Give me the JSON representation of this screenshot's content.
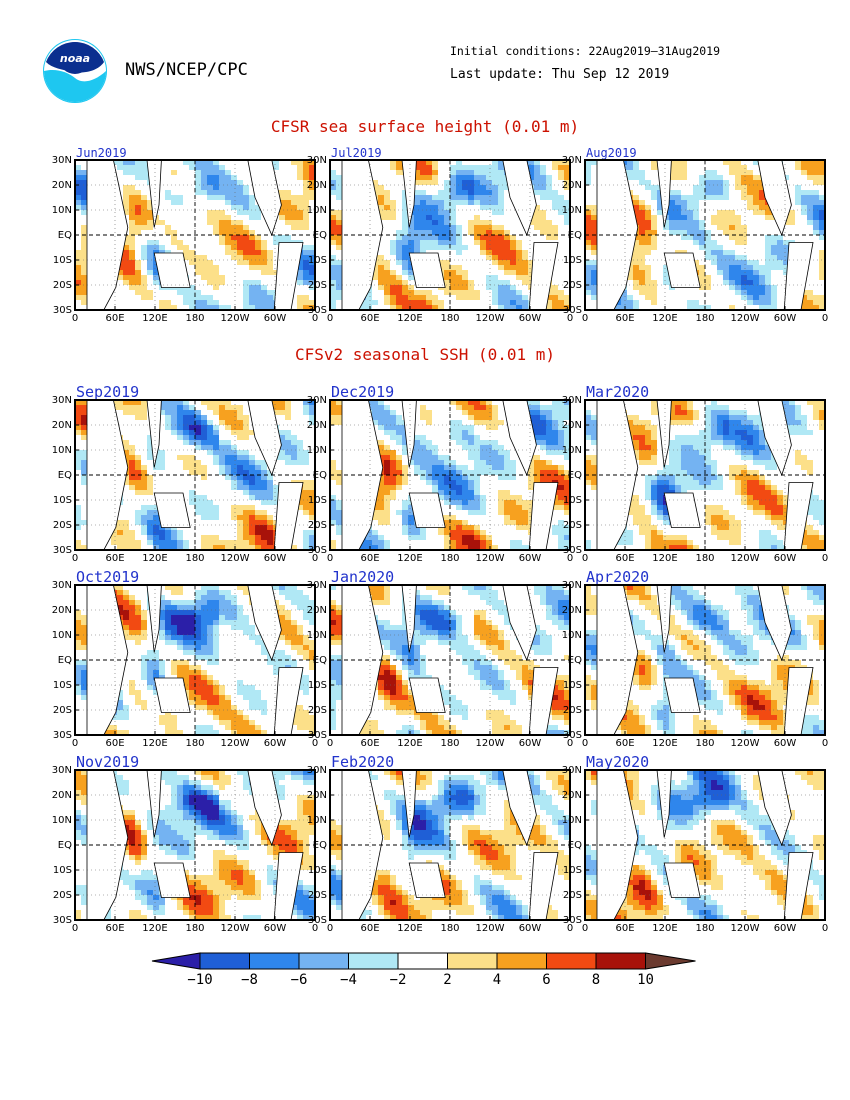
{
  "header": {
    "agency": "NWS/NCEP/CPC",
    "initial_conditions": "Initial conditions: 22Aug2019–31Aug2019",
    "last_update": "Last update: Thu Sep 12 2019",
    "logo_text": "noaa"
  },
  "sections": {
    "observed_title": "CFSR sea surface height (0.01 m)",
    "forecast_title": "CFSv2 seasonal SSH (0.01 m)"
  },
  "colors": {
    "title_red": "#cc1100",
    "panel_title_blue": "#2233cc"
  },
  "chart_data": [
    {
      "type": "heatmap",
      "group": "observed",
      "x_tick_labels": [
        "0",
        "60E",
        "120E",
        "180",
        "120W",
        "60W",
        "0"
      ],
      "y_tick_labels": [
        "30N",
        "20N",
        "10N",
        "EQ",
        "10S",
        "20S",
        "30S"
      ],
      "xlim": [
        0,
        360
      ],
      "ylim": [
        -30,
        30
      ],
      "panels": [
        "Jun2019",
        "Jul2019",
        "Aug2019"
      ]
    },
    {
      "type": "heatmap",
      "group": "forecast",
      "x_tick_labels": [
        "0",
        "60E",
        "120E",
        "180",
        "120W",
        "60W",
        "0"
      ],
      "y_tick_labels": [
        "30N",
        "20N",
        "10N",
        "EQ",
        "10S",
        "20S",
        "30S"
      ],
      "xlim": [
        0,
        360
      ],
      "ylim": [
        -30,
        30
      ],
      "panels": [
        "Sep2019",
        "Dec2019",
        "Mar2020",
        "Oct2019",
        "Jan2020",
        "Apr2020",
        "Nov2019",
        "Feb2020",
        "May2020"
      ]
    }
  ],
  "colorbar": {
    "labels": [
      "−10",
      "−8",
      "−6",
      "−4",
      "−2",
      "2",
      "4",
      "6",
      "8",
      "10"
    ],
    "bins": [
      {
        "color": "#2b1fa8",
        "range": "< -10"
      },
      {
        "color": "#1f5fd6",
        "range": "-10 to -8"
      },
      {
        "color": "#2f86ec",
        "range": "-8 to -6"
      },
      {
        "color": "#74b3f2",
        "range": "-6 to -4"
      },
      {
        "color": "#b0e8f5",
        "range": "-4 to -2"
      },
      {
        "color": "#ffffff",
        "range": "-2 to 2"
      },
      {
        "color": "#fce089",
        "range": "2 to 4"
      },
      {
        "color": "#f7a11f",
        "range": "4 to 6"
      },
      {
        "color": "#f24a12",
        "range": "6 to 8"
      },
      {
        "color": "#a8120a",
        "range": "8 to 10"
      },
      {
        "color": "#6b3a2f",
        "range": "> 10"
      }
    ]
  }
}
